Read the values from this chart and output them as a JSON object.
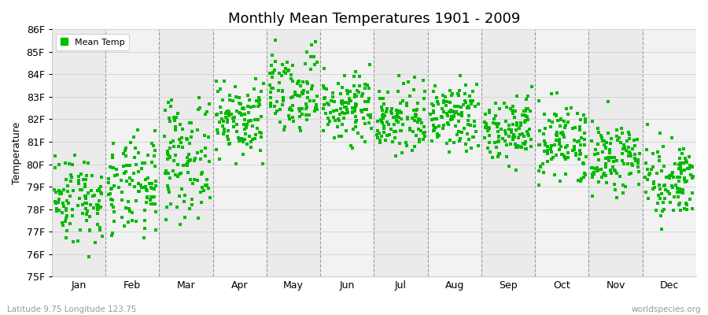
{
  "title": "Monthly Mean Temperatures 1901 - 2009",
  "ylabel": "Temperature",
  "xlabel_bottom_left": "Latitude 9.75 Longitude 123.75",
  "xlabel_bottom_right": "worldspecies.org",
  "ylim": [
    75,
    86
  ],
  "yticks": [
    75,
    76,
    77,
    78,
    79,
    80,
    81,
    82,
    83,
    84,
    85,
    86
  ],
  "ytick_labels": [
    "75F",
    "76F",
    "77F",
    "78F",
    "79F",
    "80F",
    "81F",
    "82F",
    "83F",
    "84F",
    "85F",
    "86F"
  ],
  "months": [
    "Jan",
    "Feb",
    "Mar",
    "Apr",
    "May",
    "Jun",
    "Jul",
    "Aug",
    "Sep",
    "Oct",
    "Nov",
    "Dec"
  ],
  "dot_color": "#00bb00",
  "background_color": "#ffffff",
  "plot_bg_colors": [
    "#ebebeb",
    "#f2f2f2"
  ],
  "legend_label": "Mean Temp",
  "n_years": 109,
  "month_temp_params": {
    "Jan": {
      "mean": 78.5,
      "std": 1.0,
      "min": 75.2,
      "max": 81.3
    },
    "Feb": {
      "mean": 78.9,
      "std": 1.1,
      "min": 75.6,
      "max": 82.4
    },
    "Mar": {
      "mean": 80.3,
      "std": 1.3,
      "min": 77.2,
      "max": 83.5
    },
    "Apr": {
      "mean": 82.1,
      "std": 0.9,
      "min": 79.8,
      "max": 84.3
    },
    "May": {
      "mean": 83.0,
      "std": 1.0,
      "min": 80.3,
      "max": 85.8
    },
    "Jun": {
      "mean": 82.5,
      "std": 0.8,
      "min": 80.5,
      "max": 84.8
    },
    "Jul": {
      "mean": 82.0,
      "std": 0.75,
      "min": 80.3,
      "max": 84.2
    },
    "Aug": {
      "mean": 82.1,
      "std": 0.8,
      "min": 79.8,
      "max": 84.6
    },
    "Sep": {
      "mean": 81.5,
      "std": 0.75,
      "min": 79.4,
      "max": 83.5
    },
    "Oct": {
      "mean": 81.0,
      "std": 0.8,
      "min": 79.0,
      "max": 83.5
    },
    "Nov": {
      "mean": 80.3,
      "std": 0.9,
      "min": 78.3,
      "max": 83.0
    },
    "Dec": {
      "mean": 79.4,
      "std": 0.9,
      "min": 77.0,
      "max": 82.3
    }
  }
}
